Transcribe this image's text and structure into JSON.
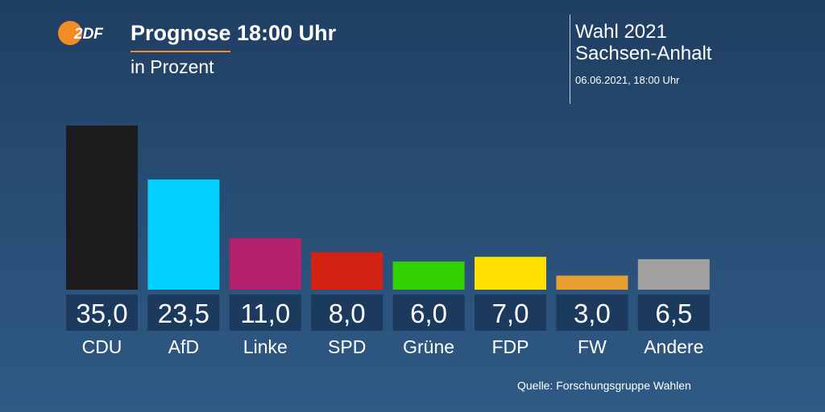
{
  "header": {
    "logo_text": "2DF",
    "title": "Prognose 18:00 Uhr",
    "subtitle": "in Prozent",
    "election": "Wahl 2021",
    "region": "Sachsen-Anhalt",
    "date": "06.06.2021, 18:00 Uhr"
  },
  "source": "Quelle: Forschungsgruppe Wahlen",
  "colors": {
    "accent": "#f28c28",
    "value_box": "#1b3a5e"
  },
  "chart_data": {
    "type": "bar",
    "categories": [
      "CDU",
      "AfD",
      "Linke",
      "SPD",
      "Grüne",
      "FDP",
      "FW",
      "Andere"
    ],
    "values": [
      35.0,
      23.5,
      11.0,
      8.0,
      6.0,
      7.0,
      3.0,
      6.5
    ],
    "value_labels": [
      "35,0",
      "23,5",
      "11,0",
      "8,0",
      "6,0",
      "7,0",
      "3,0",
      "6,5"
    ],
    "colors": [
      "#1c1c1e",
      "#00cfff",
      "#b5226b",
      "#d32211",
      "#33d100",
      "#ffe000",
      "#e8a030",
      "#a0a0a0"
    ],
    "unit": "%",
    "ylim": [
      0,
      35
    ],
    "grid": false,
    "legend": "none"
  }
}
